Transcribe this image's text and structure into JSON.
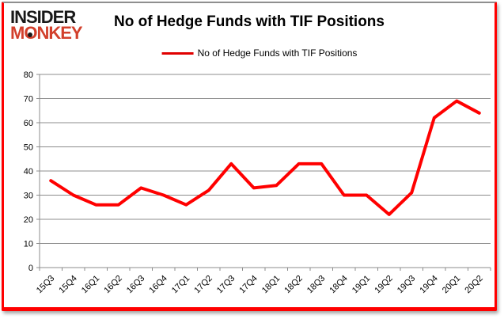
{
  "brand": {
    "line1": "INSIDER",
    "line2": "MONKEY",
    "black": "#191919",
    "red": "#d2402c"
  },
  "header": {
    "title": "No of Hedge Funds with TIF Positions"
  },
  "legend": {
    "label": "No of Hedge Funds with TIF Positions",
    "line_color": "#e00000"
  },
  "frame": {
    "border_color": "#ff0000"
  },
  "chart_data": {
    "type": "line",
    "title": "No of Hedge Funds with TIF Positions",
    "categories": [
      "15Q3",
      "15Q4",
      "16Q1",
      "16Q2",
      "16Q3",
      "16Q4",
      "17Q1",
      "17Q2",
      "17Q3",
      "17Q4",
      "18Q1",
      "18Q2",
      "18Q3",
      "18Q4",
      "19Q1",
      "19Q2",
      "19Q3",
      "19Q4",
      "20Q1",
      "20Q2"
    ],
    "series": [
      {
        "name": "No of Hedge Funds with TIF Positions",
        "color": "#ff0000",
        "values": [
          36,
          30,
          26,
          26,
          33,
          30,
          26,
          32,
          43,
          33,
          34,
          43,
          43,
          30,
          30,
          22,
          31,
          62,
          69,
          64
        ]
      }
    ],
    "xlabel": "",
    "ylabel": "",
    "ylim": [
      0,
      80
    ],
    "yticks": [
      0,
      10,
      20,
      30,
      40,
      50,
      60,
      70,
      80
    ],
    "grid": "horizontal",
    "gridline_color": "#8c8c8c",
    "axis_color": "#8c8c8c",
    "tick_label_color": "#000000",
    "legend_position": "top-center",
    "plot_background": "#ffffff"
  }
}
